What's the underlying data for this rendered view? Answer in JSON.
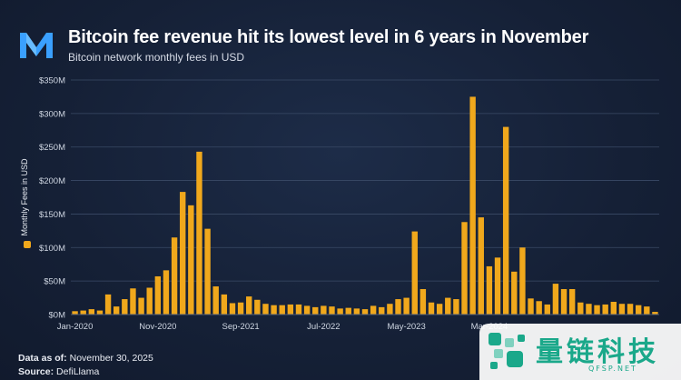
{
  "title": "Bitcoin fee revenue hit its lowest level in 6 years in November",
  "subtitle": "Bitcoin network monthly fees in USD",
  "footer": {
    "as_of_label": "Data as of:",
    "as_of_value": "November 30, 2025",
    "source_label": "Source:",
    "source_value": "DefiLlama"
  },
  "watermark": {
    "text": "量链科技",
    "sub": "QFSP.NET"
  },
  "colors": {
    "background": "#17233a",
    "bar": "#f0a81c",
    "grid": "#3a4a66",
    "axis_text": "#cfd6e2",
    "watermark": "#1aa88a"
  },
  "chart_data": {
    "type": "bar",
    "ylabel": "Monthly Fees in USD",
    "ylim": [
      0,
      350
    ],
    "y_unit": "USD millions",
    "y_ticks": [
      "$0M",
      "$50M",
      "$100M",
      "$150M",
      "$200M",
      "$250M",
      "$300M",
      "$350M"
    ],
    "x_tick_labels": [
      {
        "label": "Jan-2020",
        "index": 0
      },
      {
        "label": "Nov-2020",
        "index": 10
      },
      {
        "label": "Sep-2021",
        "index": 20
      },
      {
        "label": "Jul-2022",
        "index": 30
      },
      {
        "label": "May-2023",
        "index": 40
      },
      {
        "label": "Mar-2024",
        "index": 50
      }
    ],
    "grid": true,
    "legend": "left-vertical",
    "categories": [
      "Jan-2020",
      "Feb-2020",
      "Mar-2020",
      "Apr-2020",
      "May-2020",
      "Jun-2020",
      "Jul-2020",
      "Aug-2020",
      "Sep-2020",
      "Oct-2020",
      "Nov-2020",
      "Dec-2020",
      "Jan-2021",
      "Feb-2021",
      "Mar-2021",
      "Apr-2021",
      "May-2021",
      "Jun-2021",
      "Jul-2021",
      "Aug-2021",
      "Sep-2021",
      "Oct-2021",
      "Nov-2021",
      "Dec-2021",
      "Jan-2022",
      "Feb-2022",
      "Mar-2022",
      "Apr-2022",
      "May-2022",
      "Jun-2022",
      "Jul-2022",
      "Aug-2022",
      "Sep-2022",
      "Oct-2022",
      "Nov-2022",
      "Dec-2022",
      "Jan-2023",
      "Feb-2023",
      "Mar-2023",
      "Apr-2023",
      "May-2023",
      "Jun-2023",
      "Jul-2023",
      "Aug-2023",
      "Sep-2023",
      "Oct-2023",
      "Nov-2023",
      "Dec-2023",
      "Jan-2024",
      "Feb-2024",
      "Mar-2024",
      "Apr-2024",
      "May-2024",
      "Jun-2024",
      "Jul-2024",
      "Aug-2024",
      "Sep-2024",
      "Oct-2024",
      "Nov-2024",
      "Dec-2024",
      "Jan-2025",
      "Feb-2025",
      "Mar-2025",
      "Apr-2025",
      "May-2025",
      "Jun-2025",
      "Jul-2025",
      "Aug-2025",
      "Sep-2025",
      "Oct-2025",
      "Nov-2025"
    ],
    "values": [
      5,
      6,
      8,
      6,
      30,
      12,
      23,
      39,
      25,
      40,
      57,
      66,
      115,
      183,
      163,
      243,
      128,
      42,
      30,
      17,
      18,
      27,
      22,
      16,
      14,
      14,
      15,
      15,
      13,
      11,
      13,
      12,
      9,
      10,
      9,
      8,
      13,
      11,
      16,
      23,
      25,
      124,
      38,
      18,
      16,
      25,
      23,
      138,
      325,
      145,
      72,
      85,
      280,
      64,
      100,
      24,
      20,
      15,
      46,
      38,
      38,
      18,
      16,
      14,
      15,
      19,
      16,
      16,
      14,
      12,
      4
    ]
  }
}
